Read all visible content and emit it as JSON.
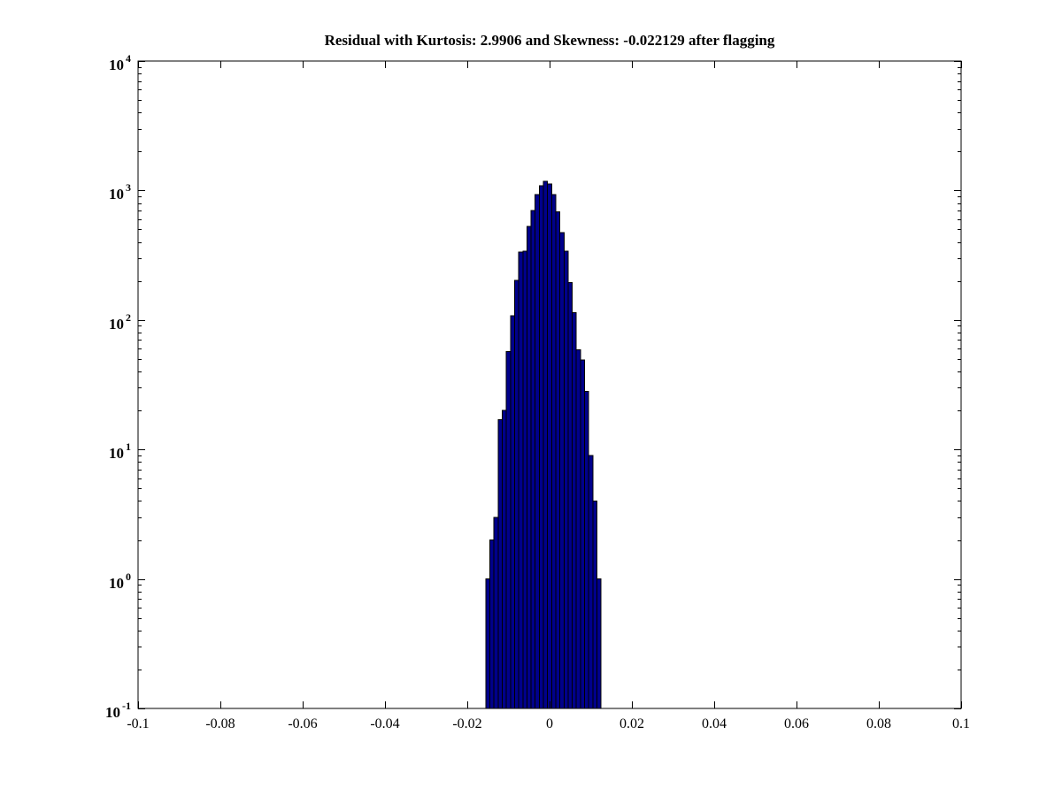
{
  "chart_data": {
    "type": "bar",
    "subtype": "histogram-log-y",
    "title": "Residual with Kurtosis: 2.9906 and Skewness: -0.022129 after flagging",
    "xlabel": "",
    "ylabel": "",
    "xlim": [
      -0.1,
      0.1
    ],
    "ylim_log10": [
      -1,
      4
    ],
    "yscale": "log",
    "grid": false,
    "legend": "none",
    "bin_width": 0.001,
    "bin_centers": [
      -0.015,
      -0.014,
      -0.013,
      -0.012,
      -0.011,
      -0.01,
      -0.009,
      -0.008,
      -0.007,
      -0.006,
      -0.005,
      -0.004,
      -0.003,
      -0.002,
      -0.001,
      0.0,
      0.001,
      0.002,
      0.003,
      0.004,
      0.005,
      0.006,
      0.007,
      0.008,
      0.009,
      0.01,
      0.011,
      0.012
    ],
    "values": [
      1,
      2,
      3,
      17,
      20,
      57,
      108,
      203,
      335,
      340,
      527,
      702,
      931,
      1090,
      1177,
      1120,
      930,
      683,
      473,
      340,
      194,
      114,
      59,
      49,
      28,
      9,
      4,
      1
    ],
    "x_tick_labels": [
      "-0.1",
      "-0.08",
      "-0.06",
      "-0.04",
      "-0.02",
      "0",
      "0.02",
      "0.04",
      "0.06",
      "0.08",
      "0.1"
    ],
    "x_tick_values": [
      -0.1,
      -0.08,
      -0.06,
      -0.04,
      -0.02,
      0,
      0.02,
      0.04,
      0.06,
      0.08,
      0.1
    ],
    "y_tick_base": "10",
    "y_tick_exponents": [
      -1,
      0,
      1,
      2,
      3,
      4
    ],
    "colors": {
      "bar_fill": "#00008B",
      "bar_edge": "#000000",
      "axis": "#000000",
      "background": "#ffffff",
      "text": "#000000"
    }
  }
}
